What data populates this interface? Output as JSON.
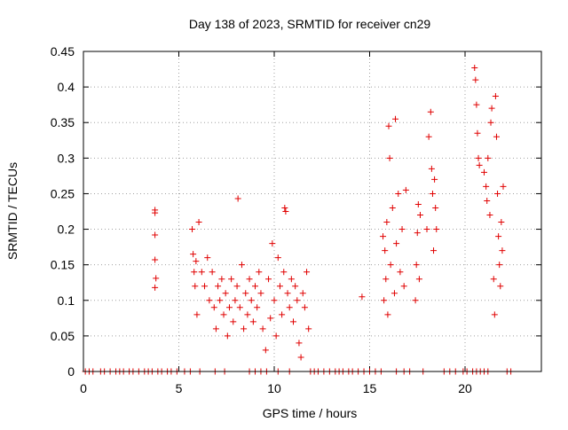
{
  "chart_data": {
    "type": "scatter",
    "title": "Day 138 of 2023, SRMTID for receiver cn29",
    "xlabel": "GPS time / hours",
    "ylabel": "SRMTID / TECUs",
    "xlim": [
      0,
      24
    ],
    "ylim": [
      0,
      0.45
    ],
    "xticks": [
      0,
      5,
      10,
      15,
      20
    ],
    "yticks": [
      0,
      0.05,
      0.1,
      0.15,
      0.2,
      0.25,
      0.3,
      0.35,
      0.4,
      0.45
    ],
    "grid": true,
    "marker": "plus",
    "color": "#e00000",
    "series": [
      {
        "name": "SRMTID",
        "points": [
          [
            3.75,
            0.227
          ],
          [
            3.75,
            0.223
          ],
          [
            3.75,
            0.192
          ],
          [
            3.75,
            0.157
          ],
          [
            3.8,
            0.131
          ],
          [
            3.75,
            0.118
          ],
          [
            5.7,
            0.2
          ],
          [
            5.75,
            0.165
          ],
          [
            5.8,
            0.14
          ],
          [
            5.85,
            0.12
          ],
          [
            5.9,
            0.155
          ],
          [
            5.95,
            0.08
          ],
          [
            6.05,
            0.21
          ],
          [
            6.2,
            0.14
          ],
          [
            6.35,
            0.12
          ],
          [
            6.5,
            0.16
          ],
          [
            6.6,
            0.1
          ],
          [
            6.75,
            0.14
          ],
          [
            6.85,
            0.09
          ],
          [
            6.95,
            0.06
          ],
          [
            7.05,
            0.12
          ],
          [
            7.15,
            0.1
          ],
          [
            7.25,
            0.13
          ],
          [
            7.35,
            0.08
          ],
          [
            7.45,
            0.11
          ],
          [
            7.55,
            0.05
          ],
          [
            7.65,
            0.09
          ],
          [
            7.75,
            0.13
          ],
          [
            7.85,
            0.07
          ],
          [
            7.95,
            0.1
          ],
          [
            8.05,
            0.12
          ],
          [
            8.1,
            0.243
          ],
          [
            8.2,
            0.09
          ],
          [
            8.3,
            0.15
          ],
          [
            8.4,
            0.06
          ],
          [
            8.5,
            0.11
          ],
          [
            8.6,
            0.08
          ],
          [
            8.7,
            0.13
          ],
          [
            8.8,
            0.1
          ],
          [
            8.9,
            0.07
          ],
          [
            9.0,
            0.12
          ],
          [
            9.1,
            0.09
          ],
          [
            9.2,
            0.14
          ],
          [
            9.3,
            0.11
          ],
          [
            9.4,
            0.06
          ],
          [
            9.55,
            0.03
          ],
          [
            9.7,
            0.13
          ],
          [
            9.8,
            0.075
          ],
          [
            9.9,
            0.18
          ],
          [
            10.0,
            0.1
          ],
          [
            10.1,
            0.05
          ],
          [
            10.2,
            0.16
          ],
          [
            10.3,
            0.12
          ],
          [
            10.4,
            0.08
          ],
          [
            10.5,
            0.14
          ],
          [
            10.55,
            0.23
          ],
          [
            10.6,
            0.225
          ],
          [
            10.7,
            0.11
          ],
          [
            10.8,
            0.09
          ],
          [
            10.9,
            0.13
          ],
          [
            11.0,
            0.07
          ],
          [
            11.1,
            0.12
          ],
          [
            11.2,
            0.1
          ],
          [
            11.3,
            0.04
          ],
          [
            11.4,
            0.02
          ],
          [
            11.5,
            0.11
          ],
          [
            11.6,
            0.09
          ],
          [
            11.7,
            0.14
          ],
          [
            11.8,
            0.06
          ],
          [
            14.6,
            0.105
          ],
          [
            15.7,
            0.19
          ],
          [
            15.75,
            0.1
          ],
          [
            15.8,
            0.17
          ],
          [
            15.85,
            0.13
          ],
          [
            15.9,
            0.21
          ],
          [
            15.95,
            0.08
          ],
          [
            16.0,
            0.345
          ],
          [
            16.05,
            0.3
          ],
          [
            16.1,
            0.15
          ],
          [
            16.2,
            0.23
          ],
          [
            16.3,
            0.11
          ],
          [
            16.35,
            0.355
          ],
          [
            16.4,
            0.18
          ],
          [
            16.5,
            0.25
          ],
          [
            16.6,
            0.14
          ],
          [
            16.7,
            0.2
          ],
          [
            16.8,
            0.12
          ],
          [
            16.9,
            0.255
          ],
          [
            17.4,
            0.1
          ],
          [
            17.45,
            0.15
          ],
          [
            17.5,
            0.195
          ],
          [
            17.55,
            0.235
          ],
          [
            17.6,
            0.13
          ],
          [
            17.65,
            0.22
          ],
          [
            18.0,
            0.2
          ],
          [
            18.1,
            0.33
          ],
          [
            18.2,
            0.365
          ],
          [
            18.25,
            0.285
          ],
          [
            18.3,
            0.25
          ],
          [
            18.35,
            0.17
          ],
          [
            18.4,
            0.27
          ],
          [
            18.45,
            0.23
          ],
          [
            18.5,
            0.2
          ],
          [
            20.5,
            0.427
          ],
          [
            20.55,
            0.41
          ],
          [
            20.6,
            0.375
          ],
          [
            20.65,
            0.335
          ],
          [
            20.7,
            0.3
          ],
          [
            20.75,
            0.29
          ],
          [
            21.0,
            0.28
          ],
          [
            21.1,
            0.26
          ],
          [
            21.15,
            0.24
          ],
          [
            21.2,
            0.3
          ],
          [
            21.3,
            0.22
          ],
          [
            21.35,
            0.35
          ],
          [
            21.4,
            0.37
          ],
          [
            21.5,
            0.13
          ],
          [
            21.55,
            0.08
          ],
          [
            21.6,
            0.387
          ],
          [
            21.65,
            0.33
          ],
          [
            21.7,
            0.25
          ],
          [
            21.75,
            0.19
          ],
          [
            21.8,
            0.15
          ],
          [
            21.85,
            0.12
          ],
          [
            21.9,
            0.21
          ],
          [
            21.95,
            0.17
          ],
          [
            22.0,
            0.26
          ]
        ]
      }
    ],
    "zero_points_x": [
      0.1,
      0.3,
      0.5,
      0.9,
      1.1,
      1.4,
      1.7,
      1.9,
      2.1,
      2.4,
      2.6,
      2.9,
      3.2,
      3.4,
      3.6,
      3.9,
      4.1,
      4.4,
      4.6,
      4.9,
      5.3,
      5.6,
      6.1,
      6.9,
      7.4,
      8.7,
      9.0,
      9.3,
      9.6,
      10.2,
      10.8,
      11.9,
      12.1,
      12.3,
      12.6,
      12.9,
      13.2,
      13.4,
      13.6,
      13.9,
      14.1,
      14.4,
      14.7,
      15.0,
      15.3,
      15.6,
      16.4,
      16.8,
      17.1,
      17.8,
      18.9,
      19.2,
      19.5,
      19.9,
      20.1,
      20.4,
      20.6,
      20.8,
      21.0,
      21.2,
      22.2,
      22.4
    ]
  }
}
